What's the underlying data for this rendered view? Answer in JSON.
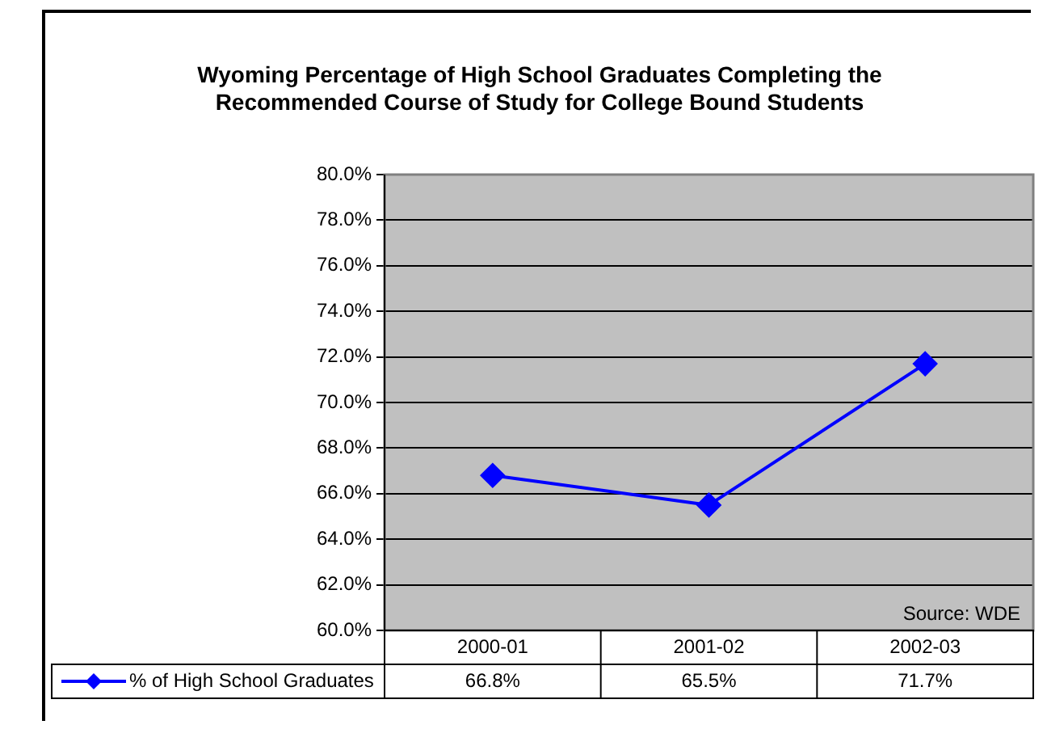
{
  "chart_data": {
    "type": "line",
    "title": "Wyoming Percentage of High School Graduates Completing the Recommended Course of Study for College Bound Students",
    "categories": [
      "2000-01",
      "2001-02",
      "2002-03"
    ],
    "series": [
      {
        "name": "% of High School Graduates",
        "color": "#0000ff",
        "values": [
          66.8,
          65.5,
          71.7
        ],
        "value_labels": [
          "66.8%",
          "65.5%",
          "71.7%"
        ]
      }
    ],
    "ylim": [
      60,
      80
    ],
    "yticks": [
      {
        "value": 60,
        "label": "60.0%"
      },
      {
        "value": 62,
        "label": "62.0%"
      },
      {
        "value": 64,
        "label": "64.0%"
      },
      {
        "value": 66,
        "label": "66.0%"
      },
      {
        "value": 68,
        "label": "68.0%"
      },
      {
        "value": 70,
        "label": "70.0%"
      },
      {
        "value": 72,
        "label": "72.0%"
      },
      {
        "value": 74,
        "label": "74.0%"
      },
      {
        "value": 76,
        "label": "76.0%"
      },
      {
        "value": 78,
        "label": "78.0%"
      },
      {
        "value": 80,
        "label": "80.0%"
      }
    ],
    "grid": "y",
    "legend": "bottom left",
    "marker": "diamond",
    "line_style": "solid",
    "annotations": [
      "Source: WDE"
    ]
  }
}
